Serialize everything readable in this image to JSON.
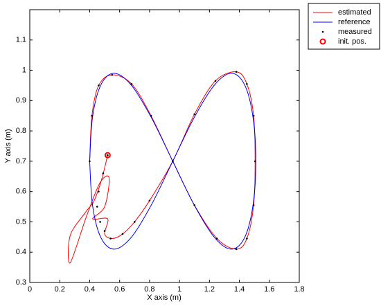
{
  "chart_data": {
    "type": "line",
    "xlabel": "X axis (m)",
    "ylabel": "Y axis (m)",
    "xlim": [
      0,
      1.8
    ],
    "xticks": [
      0,
      0.2,
      0.4,
      0.6,
      0.8,
      1,
      1.2,
      1.4,
      1.6,
      1.8
    ],
    "ylim": [
      0.3,
      1.2
    ],
    "yticks": [
      0.3,
      0.4,
      0.5,
      0.6,
      0.7,
      0.8,
      0.9,
      1,
      1.1
    ],
    "legend": "outside-top-right",
    "series": [
      {
        "name": "estimated",
        "color": "#ff0000",
        "line": true,
        "marker": "none",
        "x": [
          0.52,
          0.48,
          0.43,
          0.37,
          0.27,
          0.27,
          0.38,
          0.47,
          0.53,
          0.5,
          0.42,
          0.52,
          0.5,
          0.55,
          0.62,
          0.7,
          0.8,
          0.955,
          1.1,
          1.24,
          1.38,
          1.45,
          1.495,
          1.505,
          1.495,
          1.45,
          1.38,
          1.25,
          1.1,
          0.955,
          0.81,
          0.68,
          0.55,
          0.46,
          0.415,
          0.4
        ],
        "y": [
          0.72,
          0.64,
          0.57,
          0.53,
          0.455,
          0.365,
          0.52,
          0.63,
          0.645,
          0.55,
          0.51,
          0.51,
          0.46,
          0.445,
          0.46,
          0.5,
          0.57,
          0.7,
          0.855,
          0.965,
          0.995,
          0.955,
          0.85,
          0.7,
          0.555,
          0.445,
          0.41,
          0.445,
          0.555,
          0.7,
          0.85,
          0.955,
          0.985,
          0.95,
          0.85,
          0.7
        ]
      },
      {
        "name": "reference",
        "color": "#0000ff",
        "line": true,
        "marker": "none",
        "x": [
          0.4,
          0.419,
          0.474,
          0.563,
          0.678,
          0.811,
          0.955,
          1.099,
          1.233,
          1.347,
          1.436,
          1.491,
          1.51,
          1.491,
          1.436,
          1.347,
          1.233,
          1.099,
          0.955,
          0.811,
          0.678,
          0.563,
          0.474,
          0.419,
          0.4
        ],
        "y": [
          0.7,
          0.555,
          0.449,
          0.41,
          0.449,
          0.555,
          0.7,
          0.845,
          0.951,
          0.99,
          0.951,
          0.845,
          0.7,
          0.555,
          0.449,
          0.41,
          0.449,
          0.555,
          0.7,
          0.845,
          0.951,
          0.99,
          0.951,
          0.845,
          0.7
        ]
      },
      {
        "name": "measured",
        "color": "#000000",
        "line": false,
        "marker": "dot",
        "x": [
          0.52,
          0.49,
          0.46,
          0.45,
          0.47,
          0.5,
          0.54,
          0.62,
          0.7,
          0.8,
          0.955,
          1.1,
          1.24,
          1.38,
          1.45,
          1.495,
          1.505,
          1.495,
          1.45,
          1.38,
          1.25,
          1.1,
          0.955,
          0.81,
          0.68,
          0.55,
          0.46,
          0.415,
          0.4
        ],
        "y": [
          0.72,
          0.66,
          0.6,
          0.55,
          0.5,
          0.47,
          0.445,
          0.46,
          0.5,
          0.57,
          0.7,
          0.855,
          0.965,
          0.995,
          0.955,
          0.85,
          0.7,
          0.555,
          0.445,
          0.41,
          0.445,
          0.555,
          0.7,
          0.85,
          0.955,
          0.985,
          0.95,
          0.85,
          0.7
        ]
      },
      {
        "name": "init. pos.",
        "color": "#ff0000",
        "line": false,
        "marker": "circle",
        "x": [
          0.52
        ],
        "y": [
          0.72
        ]
      }
    ]
  }
}
